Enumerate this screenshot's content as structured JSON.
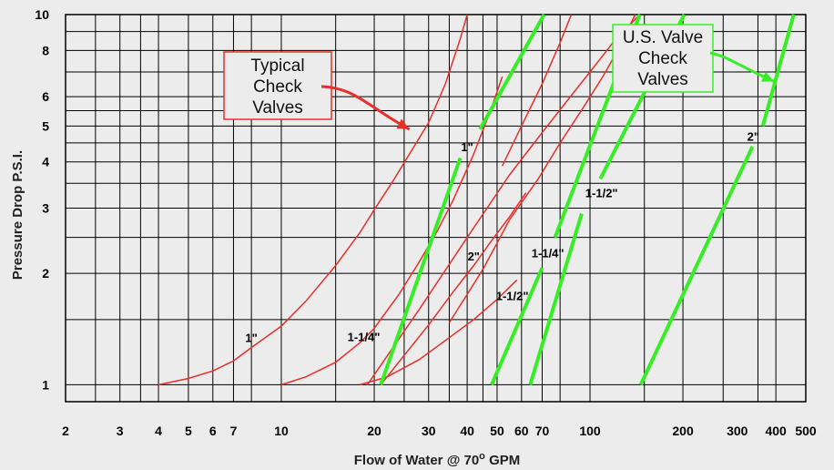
{
  "chart_data": {
    "type": "line",
    "xlabel": "Flow of Water @ 70° GPM",
    "xlabel_parts": {
      "pre": "Flow of Water @ 70",
      "sup": "o",
      "post": " GPM"
    },
    "ylabel": "Pressure Drop P.S.I.",
    "x_scale": "log",
    "y_scale": "log",
    "xlim": [
      2,
      500
    ],
    "ylim": [
      0.9,
      10
    ],
    "grid": true,
    "x_ticks": [
      {
        "v": 2,
        "label": "2"
      },
      {
        "v": 3,
        "label": "3"
      },
      {
        "v": 4,
        "label": "4"
      },
      {
        "v": 5,
        "label": "5"
      },
      {
        "v": 6,
        "label": "6"
      },
      {
        "v": 7,
        "label": "7"
      },
      {
        "v": 10,
        "label": "10"
      },
      {
        "v": 20,
        "label": "20"
      },
      {
        "v": 30,
        "label": "30"
      },
      {
        "v": 40,
        "label": "40"
      },
      {
        "v": 50,
        "label": "50"
      },
      {
        "v": 60,
        "label": "60"
      },
      {
        "v": 70,
        "label": "70"
      },
      {
        "v": 100,
        "label": "100"
      },
      {
        "v": 200,
        "label": "200"
      },
      {
        "v": 300,
        "label": "300"
      },
      {
        "v": 400,
        "label": "400"
      },
      {
        "v": 500,
        "label": "500"
      }
    ],
    "x_gridlines": [
      2.5,
      3,
      3.5,
      4,
      5,
      6,
      7,
      8,
      10,
      15,
      20,
      25,
      30,
      35,
      40,
      45,
      50,
      60,
      70,
      80,
      100,
      150,
      200,
      270,
      350,
      400
    ],
    "y_ticks": [
      {
        "v": 1,
        "label": "1"
      },
      {
        "v": 2,
        "label": "2"
      },
      {
        "v": 3,
        "label": "3"
      },
      {
        "v": 4,
        "label": "4"
      },
      {
        "v": 5,
        "label": "5"
      },
      {
        "v": 6,
        "label": "6"
      },
      {
        "v": 8,
        "label": "8"
      },
      {
        "v": 10,
        "label": "10"
      }
    ],
    "y_gridlines": [
      1,
      1.5,
      2,
      2.5,
      3,
      3.5,
      4,
      4.5,
      5,
      5.5,
      6,
      7,
      8,
      9,
      10
    ],
    "series": [
      {
        "name": "1\"",
        "group": "typical",
        "color": "#e8302b",
        "x": [
          4,
          5,
          6,
          7,
          8,
          10,
          12,
          15,
          18,
          20,
          23,
          26,
          30,
          34,
          38,
          40
        ],
        "y": [
          1.0,
          1.04,
          1.09,
          1.16,
          1.26,
          1.44,
          1.68,
          2.1,
          2.58,
          2.97,
          3.55,
          4.2,
          5.1,
          6.5,
          8.6,
          10
        ],
        "label": "1\"",
        "label_at": [
          8,
          1.34
        ]
      },
      {
        "name": "1-1/4\"",
        "group": "typical",
        "color": "#e8302b",
        "x": [
          10,
          12,
          15,
          18,
          20,
          24,
          28,
          32,
          36,
          42,
          48,
          52
        ],
        "y": [
          1.0,
          1.05,
          1.15,
          1.3,
          1.42,
          1.75,
          2.15,
          2.6,
          3.15,
          4.2,
          5.6,
          6.8
        ],
        "label": "1-1/4\"",
        "label_at": [
          18.5,
          1.35
        ]
      },
      {
        "name": "1-1/2\"",
        "group": "typical",
        "color": "#e8302b",
        "x": [
          18,
          22,
          28,
          35,
          42,
          50,
          58
        ],
        "y": [
          1.0,
          1.05,
          1.17,
          1.34,
          1.5,
          1.7,
          1.92
        ],
        "label": "1-1/2\"",
        "label_at": [
          56,
          1.74
        ]
      },
      {
        "name": "2\"",
        "group": "typical",
        "color": "#e8302b",
        "x": [
          21,
          25,
          30,
          36,
          42,
          48,
          55,
          62
        ],
        "y": [
          1.0,
          1.2,
          1.45,
          1.78,
          2.1,
          2.45,
          2.85,
          3.3
        ],
        "label": "2\"",
        "label_at": [
          42,
          2.23
        ]
      },
      {
        "name": "1-1/2\"",
        "group": "typical",
        "color": "#e8302b",
        "x": [
          19,
          28,
          40,
          55,
          70,
          85,
          100,
          120,
          145
        ],
        "y": [
          1.0,
          1.6,
          2.5,
          3.7,
          4.8,
          5.9,
          7.0,
          8.5,
          10
        ],
        "label": "",
        "label_at": null
      },
      {
        "name": "2\"",
        "group": "typical",
        "color": "#e8302b",
        "x": [
          35,
          45,
          55,
          68,
          80,
          95,
          110,
          125,
          140
        ],
        "y": [
          1.47,
          2.05,
          2.8,
          3.6,
          4.5,
          5.6,
          6.8,
          8.2,
          10
        ],
        "label": "",
        "label_at": null
      },
      {
        "name": "1-1/2\"",
        "group": "typical",
        "color": "#e8302b",
        "x": [
          52,
          60,
          70,
          80,
          87
        ],
        "y": [
          3.9,
          5.0,
          6.5,
          8.4,
          10
        ],
        "label": "",
        "label_at": null
      },
      {
        "name": "1\"",
        "group": "us_valve",
        "color": "#37ee26",
        "segments": [
          [
            [
              21,
              1.0
            ],
            [
              38,
              4.1
            ]
          ],
          [
            [
              44,
              4.9
            ],
            [
              71,
              10
            ]
          ]
        ],
        "label": "1\"",
        "label_at": [
          40,
          4.4
        ]
      },
      {
        "name": "1-1/4\"",
        "group": "us_valve",
        "color": "#37ee26",
        "segments": [
          [
            [
              48,
              1.0
            ],
            [
              70,
              2.07
            ]
          ],
          [
            [
              77,
              2.5
            ],
            [
              145,
              10
            ]
          ]
        ],
        "label": "1-1/4\"",
        "label_at": [
          73,
          2.27
        ]
      },
      {
        "name": "1-1/2\"",
        "group": "us_valve",
        "color": "#37ee26",
        "segments": [
          [
            [
              64,
              1.0
            ],
            [
              94,
              2.9
            ]
          ],
          [
            [
              108,
              3.6
            ],
            [
              202,
              10
            ]
          ]
        ],
        "label": "1-1/2\"",
        "label_at": [
          109,
          3.3
        ]
      },
      {
        "name": "2\"",
        "group": "us_valve",
        "color": "#37ee26",
        "segments": [
          [
            [
              146,
              1.0
            ],
            [
              336,
              4.4
            ]
          ],
          [
            [
              363,
              5.0
            ],
            [
              457,
              10
            ]
          ]
        ],
        "label": "2\"",
        "label_at": [
          338,
          4.7
        ]
      }
    ],
    "annotations": [
      {
        "group": "typical",
        "lines": [
          "Typical",
          "Check",
          "Valves"
        ],
        "border": "#e8302b",
        "arrow_color": "#e8302b",
        "arrow_to": [
          26,
          4.9
        ]
      },
      {
        "group": "us_valve",
        "lines": [
          "U.S. Valve",
          "Check",
          "Valves"
        ],
        "border": "#37ee26",
        "arrow_color": "#37ee26",
        "arrow_to": [
          395,
          6.6
        ]
      }
    ]
  }
}
